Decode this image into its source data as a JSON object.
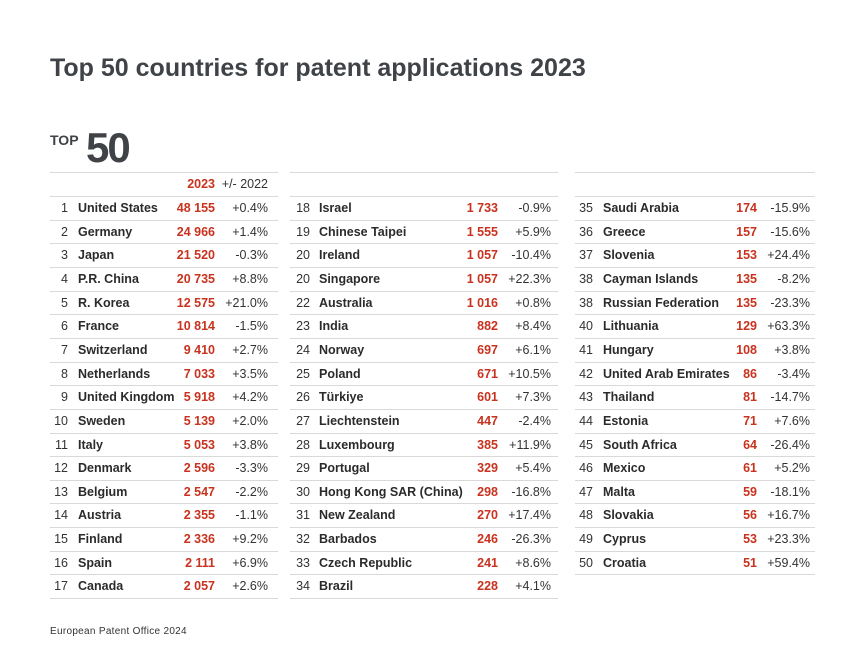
{
  "header": {
    "title": "Top 50 countries for patent applications 2023",
    "logo_small": "TOP",
    "logo_big": "50"
  },
  "table": {
    "columns": [
      "2023",
      "+/- 2022"
    ],
    "groups": [
      [
        [
          1,
          "United States",
          "48 155",
          "+0.4%"
        ],
        [
          2,
          "Germany",
          "24 966",
          "+1.4%"
        ],
        [
          3,
          "Japan",
          "21 520",
          "-0.3%"
        ],
        [
          4,
          "P.R. China",
          "20 735",
          "+8.8%"
        ],
        [
          5,
          "R. Korea",
          "12 575",
          "+21.0%"
        ],
        [
          6,
          "France",
          "10 814",
          "-1.5%"
        ],
        [
          7,
          "Switzerland",
          "9 410",
          "+2.7%"
        ],
        [
          8,
          "Netherlands",
          "7 033",
          "+3.5%"
        ],
        [
          9,
          "United Kingdom",
          "5 918",
          "+4.2%"
        ],
        [
          10,
          "Sweden",
          "5 139",
          "+2.0%"
        ],
        [
          11,
          "Italy",
          "5 053",
          "+3.8%"
        ],
        [
          12,
          "Denmark",
          "2 596",
          "-3.3%"
        ],
        [
          13,
          "Belgium",
          "2 547",
          "-2.2%"
        ],
        [
          14,
          "Austria",
          "2 355",
          "-1.1%"
        ],
        [
          15,
          "Finland",
          "2 336",
          "+9.2%"
        ],
        [
          16,
          "Spain",
          "2 111",
          "+6.9%"
        ],
        [
          17,
          "Canada",
          "2 057",
          "+2.6%"
        ]
      ],
      [
        [
          18,
          "Israel",
          "1 733",
          "-0.9%"
        ],
        [
          19,
          "Chinese Taipei",
          "1 555",
          "+5.9%"
        ],
        [
          20,
          "Ireland",
          "1 057",
          "-10.4%"
        ],
        [
          20,
          "Singapore",
          "1 057",
          "+22.3%"
        ],
        [
          22,
          "Australia",
          "1 016",
          "+0.8%"
        ],
        [
          23,
          "India",
          "882",
          "+8.4%"
        ],
        [
          24,
          "Norway",
          "697",
          "+6.1%"
        ],
        [
          25,
          "Poland",
          "671",
          "+10.5%"
        ],
        [
          26,
          "Türkiye",
          "601",
          "+7.3%"
        ],
        [
          27,
          "Liechtenstein",
          "447",
          "-2.4%"
        ],
        [
          28,
          "Luxembourg",
          "385",
          "+11.9%"
        ],
        [
          29,
          "Portugal",
          "329",
          "+5.4%"
        ],
        [
          30,
          "Hong Kong SAR (China)",
          "298",
          "-16.8%"
        ],
        [
          31,
          "New Zealand",
          "270",
          "+17.4%"
        ],
        [
          32,
          "Barbados",
          "246",
          "-26.3%"
        ],
        [
          33,
          "Czech Republic",
          "241",
          "+8.6%"
        ],
        [
          34,
          "Brazil",
          "228",
          "+4.1%"
        ]
      ],
      [
        [
          35,
          "Saudi Arabia",
          "174",
          "-15.9%"
        ],
        [
          36,
          "Greece",
          "157",
          "-15.6%"
        ],
        [
          37,
          "Slovenia",
          "153",
          "+24.4%"
        ],
        [
          38,
          "Cayman Islands",
          "135",
          "-8.2%"
        ],
        [
          38,
          "Russian Federation",
          "135",
          "-23.3%"
        ],
        [
          40,
          "Lithuania",
          "129",
          "+63.3%"
        ],
        [
          41,
          "Hungary",
          "108",
          "+3.8%"
        ],
        [
          42,
          "United Arab Emirates",
          "86",
          "-3.4%"
        ],
        [
          43,
          "Thailand",
          "81",
          "-14.7%"
        ],
        [
          44,
          "Estonia",
          "71",
          "+7.6%"
        ],
        [
          45,
          "South Africa",
          "64",
          "-26.4%"
        ],
        [
          46,
          "Mexico",
          "61",
          "+5.2%"
        ],
        [
          47,
          "Malta",
          "59",
          "-18.1%"
        ],
        [
          48,
          "Slovakia",
          "56",
          "+16.7%"
        ],
        [
          49,
          "Cyprus",
          "53",
          "+23.3%"
        ],
        [
          50,
          "Croatia",
          "51",
          "+59.4%"
        ]
      ]
    ]
  },
  "footer": {
    "source": "European Patent Office 2024"
  }
}
